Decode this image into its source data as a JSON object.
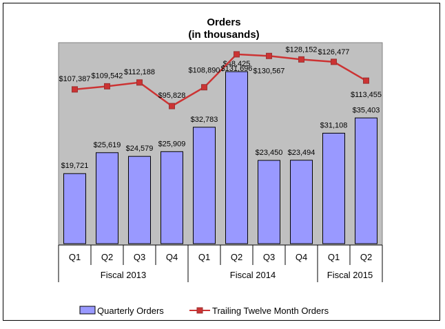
{
  "chart_data": {
    "type": "bar",
    "title": "Orders",
    "subtitle": "(in thousands)",
    "categories": [
      "Q1",
      "Q2",
      "Q3",
      "Q4",
      "Q1",
      "Q2",
      "Q3",
      "Q4",
      "Q1",
      "Q2"
    ],
    "groups": [
      {
        "label": "Fiscal 2013",
        "span": 4
      },
      {
        "label": "Fiscal 2014",
        "span": 4
      },
      {
        "label": "Fiscal 2015",
        "span": 2
      }
    ],
    "series": [
      {
        "name": "Quarterly Orders",
        "type": "bar",
        "values": [
          19721,
          25619,
          24579,
          25909,
          32783,
          48425,
          23450,
          23494,
          31108,
          35403
        ],
        "labels": [
          "$19,721",
          "$25,619",
          "$24,579",
          "$25,909",
          "$32,783",
          "$48,425",
          "$23,450",
          "$23,494",
          "$31,108",
          "$35,403"
        ]
      },
      {
        "name": "Trailing Twelve Month Orders",
        "type": "line",
        "values": [
          107387,
          109542,
          112188,
          95828,
          108890,
          131696,
          130567,
          128152,
          126477,
          113455
        ],
        "labels": [
          "$107,387",
          "$109,542",
          "$112,188",
          "$95,828",
          "$108,890",
          "$131,696",
          "$130,567",
          "$128,152",
          "$126,477",
          "$113,455"
        ]
      }
    ],
    "bar_axis": {
      "min": 0,
      "max": 50000
    },
    "line_axis": {
      "min": 0,
      "max": 135000
    },
    "legend_position": "bottom",
    "colors": {
      "plot_background": "#c0c0c0",
      "bar_fill": "#9999ff",
      "bar_stroke": "#000000",
      "line": "#cc3333",
      "marker": "#cc3333"
    }
  }
}
